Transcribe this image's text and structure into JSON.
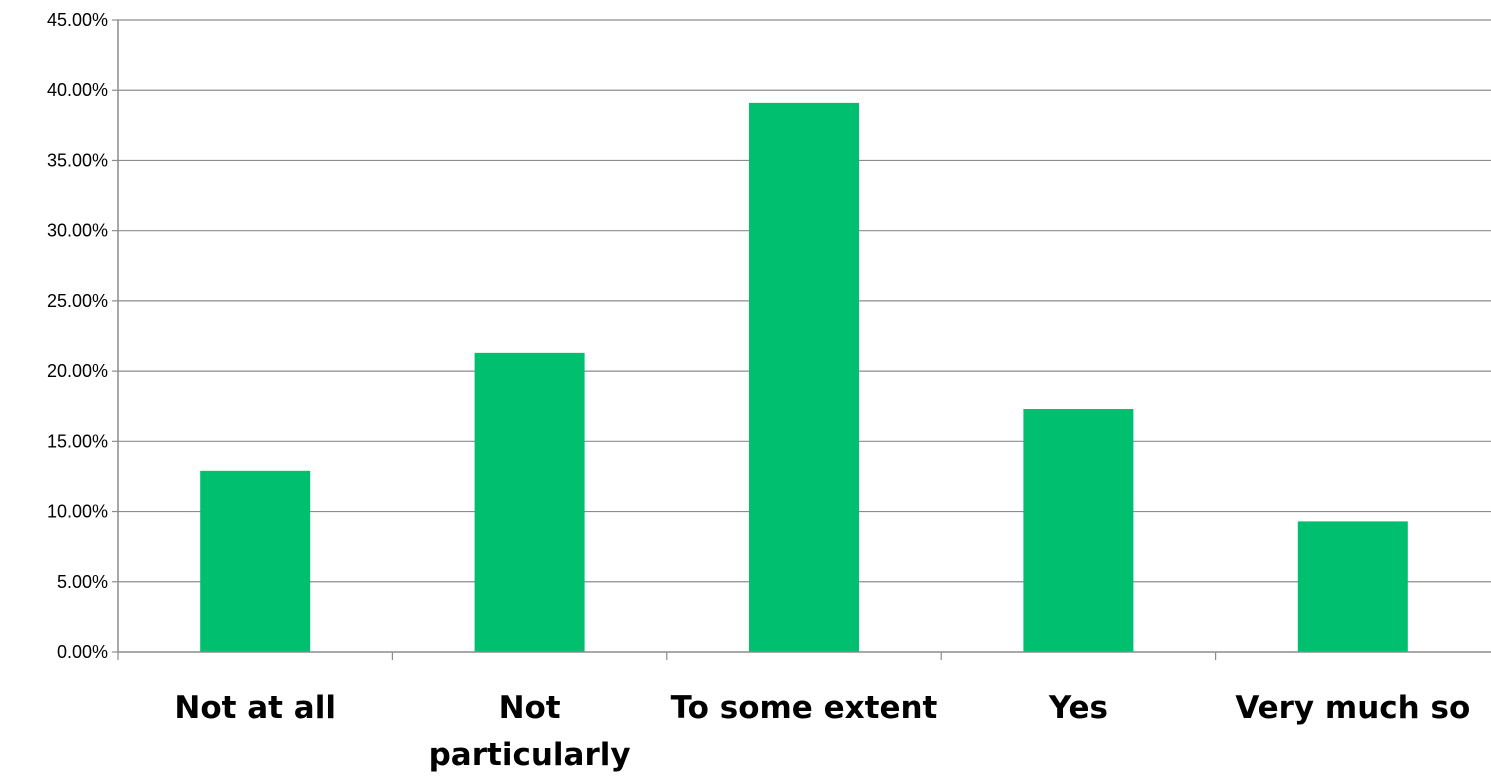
{
  "chart_data": {
    "type": "bar",
    "categories": [
      [
        "Not at all"
      ],
      [
        "Not",
        "particularly"
      ],
      [
        "To some extent"
      ],
      [
        "Yes"
      ],
      [
        "Very much so"
      ]
    ],
    "values": [
      12.9,
      21.3,
      39.1,
      17.3,
      9.3
    ],
    "ylim": [
      0,
      45
    ],
    "y_ticks": [
      "0.00%",
      "5.00%",
      "10.00%",
      "15.00%",
      "20.00%",
      "25.00%",
      "30.00%",
      "35.00%",
      "40.00%",
      "45.00%"
    ],
    "y_tick_values": [
      0,
      5,
      10,
      15,
      20,
      25,
      30,
      35,
      40,
      45
    ],
    "grid": true,
    "colors": {
      "bar": "#00BF6F",
      "grid": "#8c8c8c",
      "axis": "#8c8c8c"
    }
  }
}
